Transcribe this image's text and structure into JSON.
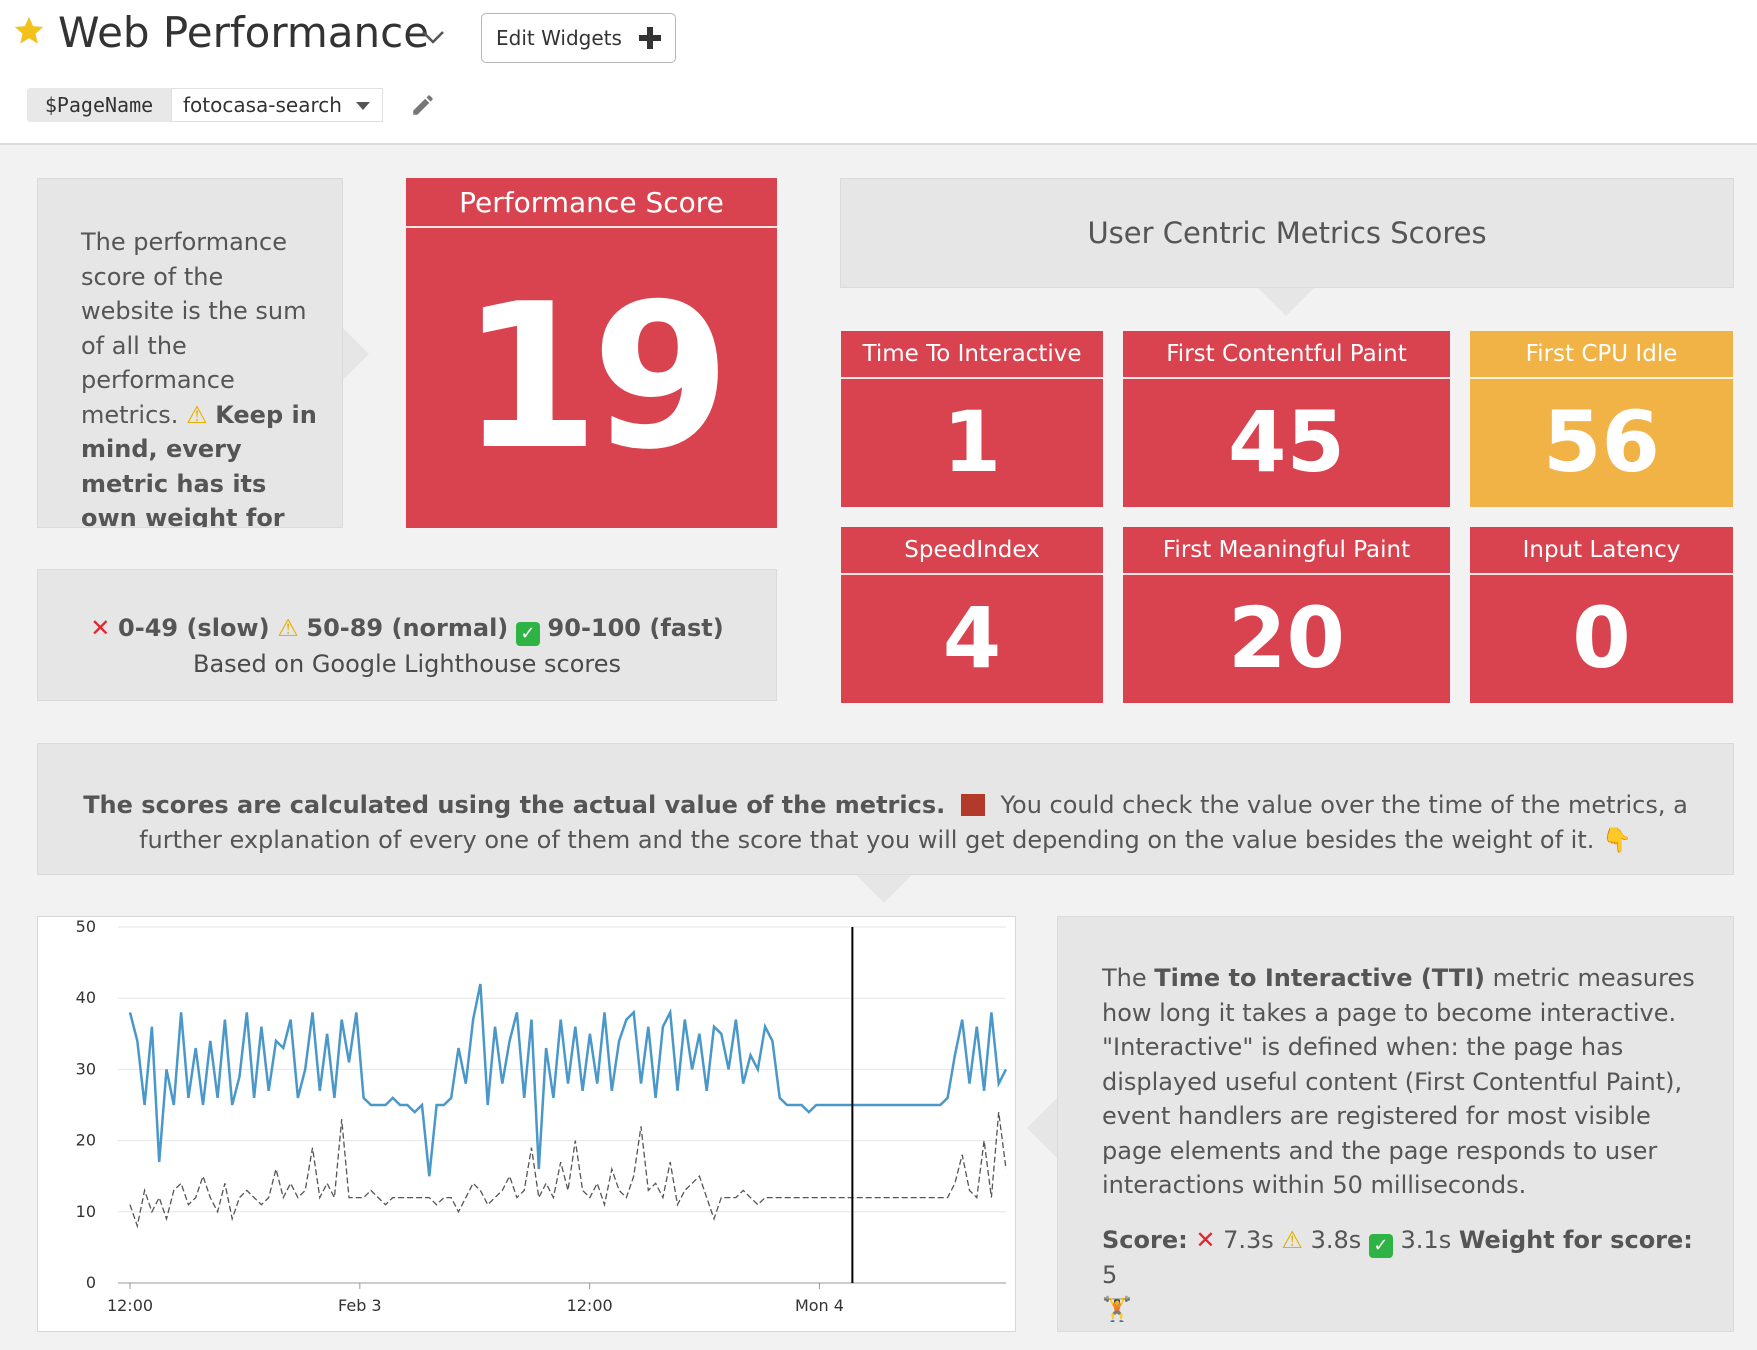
{
  "header": {
    "title": "Web Performance",
    "edit_widgets_label": "Edit Widgets",
    "variable_name": "$PageName",
    "variable_value": "fotocasa-search"
  },
  "intro_note": {
    "text_normal": "The performance score of the website is the sum of all the performance metrics.",
    "text_bold": "Keep in mind, every metric has its own weight for"
  },
  "performance_score": {
    "title": "Performance Score",
    "value": "19"
  },
  "legend_note": {
    "slow": "0-49 (slow)",
    "normal": "50-89 (normal)",
    "fast": "90-100 (fast)",
    "source": "Based on Google Lighthouse scores"
  },
  "user_metrics": {
    "heading": "User Centric Metrics Scores",
    "tiles": [
      {
        "label": "Time To Interactive",
        "value": "1"
      },
      {
        "label": "First Contentful Paint",
        "value": "45"
      },
      {
        "label": "First CPU Idle",
        "value": "56"
      },
      {
        "label": "SpeedIndex",
        "value": "4"
      },
      {
        "label": "First Meaningful Paint",
        "value": "20"
      },
      {
        "label": "Input Latency",
        "value": "0"
      }
    ]
  },
  "explain_note": {
    "bold": "The scores are calculated using the actual value of the metrics.",
    "normal": "You could check the value over the time of the metrics, a further explanation of every one of them and the score that you will get depending on the value besides the weight of it."
  },
  "tti_note": {
    "p1_a": "The",
    "p1_bold": "Time to Interactive (TTI)",
    "p1_b": "metric measures how long it takes a page to become interactive. \"Interactive\" is defined when: the page has displayed useful content (First Contentful Paint), event handlers are registered for most visible page elements and the page responds to user interactions within 50 milliseconds.",
    "score_label": "Score:",
    "slow": "7.3s",
    "normal": "3.8s",
    "fast": "3.1s",
    "weight_label": "Weight for score:",
    "weight_value": "5"
  },
  "colors": {
    "red": "#d9434f",
    "orange": "#f1b345",
    "series_blue": "#4a97c9",
    "series_dashed": "#555555"
  },
  "chart_data": {
    "type": "line",
    "title": "",
    "xlabel": "",
    "ylabel": "",
    "ylim": [
      0,
      50
    ],
    "yticks": [
      "50",
      "40",
      "30",
      "20",
      "10",
      "0"
    ],
    "xticks": [
      "12:00",
      "Feb 3",
      "12:00",
      "Mon 4"
    ],
    "marker_x": 0.827,
    "series": [
      {
        "name": "metric value",
        "style": "solid",
        "color": "#4a97c9",
        "values": [
          38,
          34,
          25,
          36,
          17,
          30,
          25,
          38,
          26,
          33,
          25,
          34,
          26,
          37,
          25,
          29,
          38,
          26,
          36,
          27,
          34,
          33,
          37,
          26,
          30,
          38,
          27,
          35,
          26,
          37,
          31,
          38,
          26,
          25,
          25,
          25,
          26,
          25,
          25,
          24,
          25,
          15,
          25,
          25,
          26,
          33,
          28,
          37,
          42,
          25,
          36,
          28,
          34,
          38,
          26,
          37,
          16,
          33,
          26,
          37,
          28,
          36,
          27,
          35,
          28,
          38,
          27,
          34,
          37,
          38,
          28,
          36,
          26,
          36,
          38,
          27,
          37,
          30,
          35,
          27,
          36,
          35,
          30,
          37,
          28,
          32,
          30,
          36,
          34,
          26,
          25,
          25,
          25,
          24,
          25,
          25,
          25,
          25,
          25,
          25,
          25,
          25,
          25,
          25,
          25,
          25,
          25,
          25,
          25,
          25,
          25,
          25,
          26,
          32,
          37,
          28,
          36,
          27,
          38,
          28,
          30
        ]
      },
      {
        "name": "score",
        "style": "dashed",
        "color": "#555555",
        "values": [
          11,
          8,
          13,
          10,
          12,
          9,
          13,
          14,
          11,
          12,
          15,
          12,
          10,
          14,
          9,
          12,
          13,
          12,
          11,
          12,
          16,
          12,
          14,
          12,
          13,
          19,
          12,
          14,
          12,
          23,
          12,
          12,
          12,
          13,
          12,
          11,
          12,
          12,
          12,
          12,
          12,
          12,
          11,
          12,
          12,
          10,
          12,
          14,
          13,
          11,
          12,
          13,
          15,
          12,
          13,
          19,
          12,
          14,
          12,
          17,
          13,
          20,
          13,
          12,
          14,
          11,
          16,
          13,
          12,
          15,
          22,
          13,
          14,
          12,
          17,
          11,
          13,
          14,
          15,
          12,
          9,
          12,
          12,
          12,
          13,
          12,
          11,
          12,
          12,
          12,
          12,
          12,
          12,
          12,
          12,
          12,
          12,
          12,
          12,
          12,
          12,
          12,
          12,
          12,
          12,
          12,
          12,
          12,
          12,
          12,
          12,
          12,
          12,
          14,
          18,
          13,
          12,
          20,
          12,
          24,
          16
        ]
      }
    ]
  }
}
